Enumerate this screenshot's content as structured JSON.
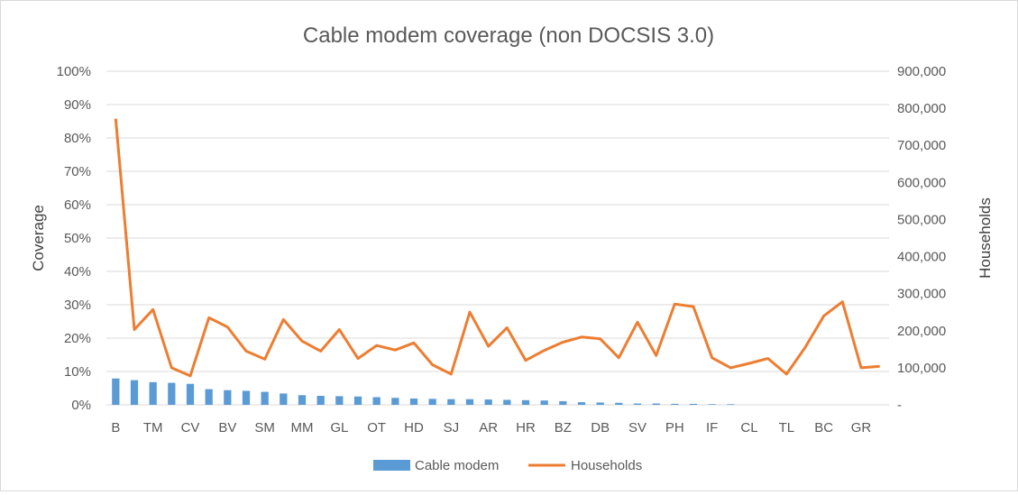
{
  "chart_data": {
    "type": "bar",
    "title": "Cable modem coverage (non DOCSIS 3.0)",
    "y_left_label": "Coverage",
    "y_right_label": "Households",
    "y_left_ticks": [
      "0%",
      "10%",
      "20%",
      "30%",
      "40%",
      "50%",
      "60%",
      "70%",
      "80%",
      "90%",
      "100%"
    ],
    "y_right_ticks": [
      "-",
      "100,000",
      "200,000",
      "300,000",
      "400,000",
      "500,000",
      "600,000",
      "700,000",
      "800,000",
      "900,000"
    ],
    "y_left_range": [
      0,
      1
    ],
    "y_right_range": [
      0,
      900000
    ],
    "x_tick_labels": [
      "B",
      "TM",
      "CV",
      "BV",
      "SM",
      "MM",
      "GL",
      "OT",
      "HD",
      "SJ",
      "AR",
      "HR",
      "BZ",
      "DB",
      "SV",
      "PH",
      "IF",
      "CL",
      "TL",
      "BC",
      "GR"
    ],
    "x_tick_every": 2,
    "grid": true,
    "legend_position": "bottom",
    "series": [
      {
        "name": "Cable modem",
        "type": "bar",
        "axis": "left",
        "color": "#5b9bd5",
        "values": [
          0.079,
          0.074,
          0.068,
          0.066,
          0.063,
          0.047,
          0.044,
          0.042,
          0.039,
          0.034,
          0.029,
          0.027,
          0.026,
          0.025,
          0.023,
          0.021,
          0.019,
          0.018,
          0.017,
          0.017,
          0.016,
          0.015,
          0.014,
          0.013,
          0.011,
          0.008,
          0.007,
          0.006,
          0.004,
          0.004,
          0.003,
          0.003,
          0.002,
          0.002,
          0,
          0,
          0,
          0,
          0,
          0,
          0,
          0
        ]
      },
      {
        "name": "Households",
        "type": "line",
        "axis": "right",
        "color": "#ed7d31",
        "values": [
          772000,
          203000,
          257000,
          100000,
          78000,
          235000,
          210000,
          145000,
          123000,
          230000,
          172000,
          145000,
          203000,
          125000,
          160000,
          148000,
          167000,
          108000,
          83000,
          250000,
          158000,
          208000,
          120000,
          147000,
          169000,
          183000,
          178000,
          127000,
          223000,
          133000,
          272000,
          265000,
          127000,
          100000,
          112000,
          125000,
          83000,
          155000,
          240000,
          278000,
          100000,
          104000
        ]
      }
    ]
  }
}
